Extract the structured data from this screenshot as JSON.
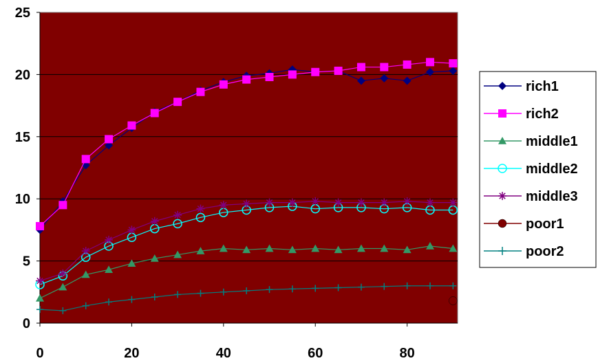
{
  "chart_data": {
    "type": "line",
    "title": "",
    "xlabel": "",
    "ylabel": "",
    "xlim": [
      0,
      91
    ],
    "ylim": [
      0,
      25
    ],
    "x_ticks": [
      0,
      20,
      40,
      60,
      80
    ],
    "y_ticks": [
      0,
      5,
      10,
      15,
      20,
      25
    ],
    "grid": "horizontal",
    "plot_background": "#800000",
    "legend_position": "right",
    "series": [
      {
        "name": "rich1",
        "color": "#000080",
        "marker": "diamond",
        "x": [
          0,
          5,
          10,
          15,
          20,
          25,
          30,
          35,
          40,
          45,
          50,
          55,
          60,
          65,
          70,
          75,
          80,
          85,
          90
        ],
        "y": [
          7.5,
          9.8,
          12.7,
          14.3,
          15.7,
          17.0,
          17.8,
          18.7,
          19.4,
          19.9,
          20.1,
          20.4,
          20.2,
          20.3,
          19.5,
          19.7,
          19.5,
          20.2,
          20.3
        ]
      },
      {
        "name": "rich2",
        "color": "#FF00FF",
        "marker": "square",
        "x": [
          0,
          5,
          10,
          15,
          20,
          25,
          30,
          35,
          40,
          45,
          50,
          55,
          60,
          65,
          70,
          75,
          80,
          85,
          90
        ],
        "y": [
          7.8,
          9.5,
          13.2,
          14.8,
          15.9,
          16.9,
          17.8,
          18.6,
          19.2,
          19.6,
          19.8,
          20.0,
          20.2,
          20.3,
          20.6,
          20.6,
          20.8,
          21.0,
          20.9
        ]
      },
      {
        "name": "middle1",
        "color": "#339966",
        "marker": "triangle",
        "x": [
          0,
          5,
          10,
          15,
          20,
          25,
          30,
          35,
          40,
          45,
          50,
          55,
          60,
          65,
          70,
          75,
          80,
          85,
          90
        ],
        "y": [
          2.0,
          2.9,
          3.9,
          4.3,
          4.8,
          5.2,
          5.5,
          5.8,
          6.0,
          5.9,
          6.0,
          5.9,
          6.0,
          5.9,
          6.0,
          6.0,
          5.9,
          6.2,
          6.0
        ]
      },
      {
        "name": "middle2",
        "color": "#00FFFF",
        "marker": "circle-open",
        "x": [
          0,
          5,
          10,
          15,
          20,
          25,
          30,
          35,
          40,
          45,
          50,
          55,
          60,
          65,
          70,
          75,
          80,
          85,
          90
        ],
        "y": [
          3.1,
          3.8,
          5.3,
          6.2,
          6.9,
          7.6,
          8.0,
          8.5,
          8.9,
          9.1,
          9.3,
          9.4,
          9.2,
          9.3,
          9.3,
          9.2,
          9.3,
          9.1,
          9.1
        ]
      },
      {
        "name": "middle3",
        "color": "#800080",
        "marker": "asterisk",
        "x": [
          0,
          5,
          10,
          15,
          20,
          25,
          30,
          35,
          40,
          45,
          50,
          55,
          60,
          65,
          70,
          75,
          80,
          85,
          90
        ],
        "y": [
          3.4,
          4.0,
          5.8,
          6.7,
          7.5,
          8.2,
          8.7,
          9.2,
          9.5,
          9.6,
          9.7,
          9.7,
          9.8,
          9.7,
          9.7,
          9.7,
          9.8,
          9.7,
          9.7
        ]
      },
      {
        "name": "poor1",
        "color": "#800000",
        "marker": "circle",
        "x": [
          90
        ],
        "y": [
          1.8
        ]
      },
      {
        "name": "poor2",
        "color": "#008080",
        "marker": "plus",
        "x": [
          0,
          5,
          10,
          15,
          20,
          25,
          30,
          35,
          40,
          45,
          50,
          55,
          60,
          65,
          70,
          75,
          80,
          85,
          90
        ],
        "y": [
          1.1,
          1.0,
          1.4,
          1.7,
          1.9,
          2.1,
          2.3,
          2.4,
          2.5,
          2.6,
          2.7,
          2.75,
          2.8,
          2.85,
          2.9,
          2.95,
          3.0,
          3.0,
          3.0
        ]
      }
    ]
  }
}
